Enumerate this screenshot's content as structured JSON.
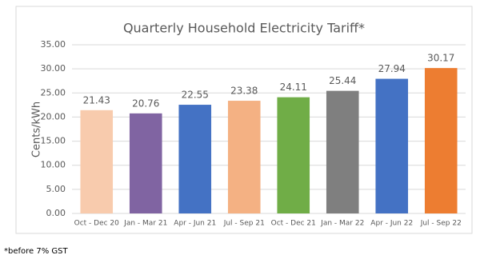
{
  "chart_data": {
    "type": "bar",
    "title": "Quarterly Household Electricity Tariff*",
    "y_label": "Cents/kWh",
    "categories": [
      "Oct - Dec 20",
      "Jan - Mar 21",
      "Apr - Jun 21",
      "Jul - Sep 21",
      "Oct - Dec 21",
      "Jan - Mar 22",
      "Apr - Jun 22",
      "Jul - Sep 22"
    ],
    "values": [
      21.43,
      20.76,
      22.55,
      23.38,
      24.11,
      25.44,
      27.94,
      30.17
    ],
    "colors": [
      "#f8cbad",
      "#8064a2",
      "#4472c4",
      "#f4b183",
      "#70ad47",
      "#7f7f7f",
      "#4472c4",
      "#ed7d31"
    ],
    "ylim": [
      0,
      35
    ],
    "yticks": [
      {
        "value": 0,
        "label": "0.00"
      },
      {
        "value": 5,
        "label": "5.00"
      },
      {
        "value": 10,
        "label": "10.00"
      },
      {
        "value": 15,
        "label": "15.00"
      },
      {
        "value": 20,
        "label": "20.00"
      },
      {
        "value": 25,
        "label": "25.00"
      },
      {
        "value": 30,
        "label": "30.00"
      },
      {
        "value": 35,
        "label": "35.00"
      }
    ],
    "grid": true
  },
  "footnote": "*before 7% GST"
}
